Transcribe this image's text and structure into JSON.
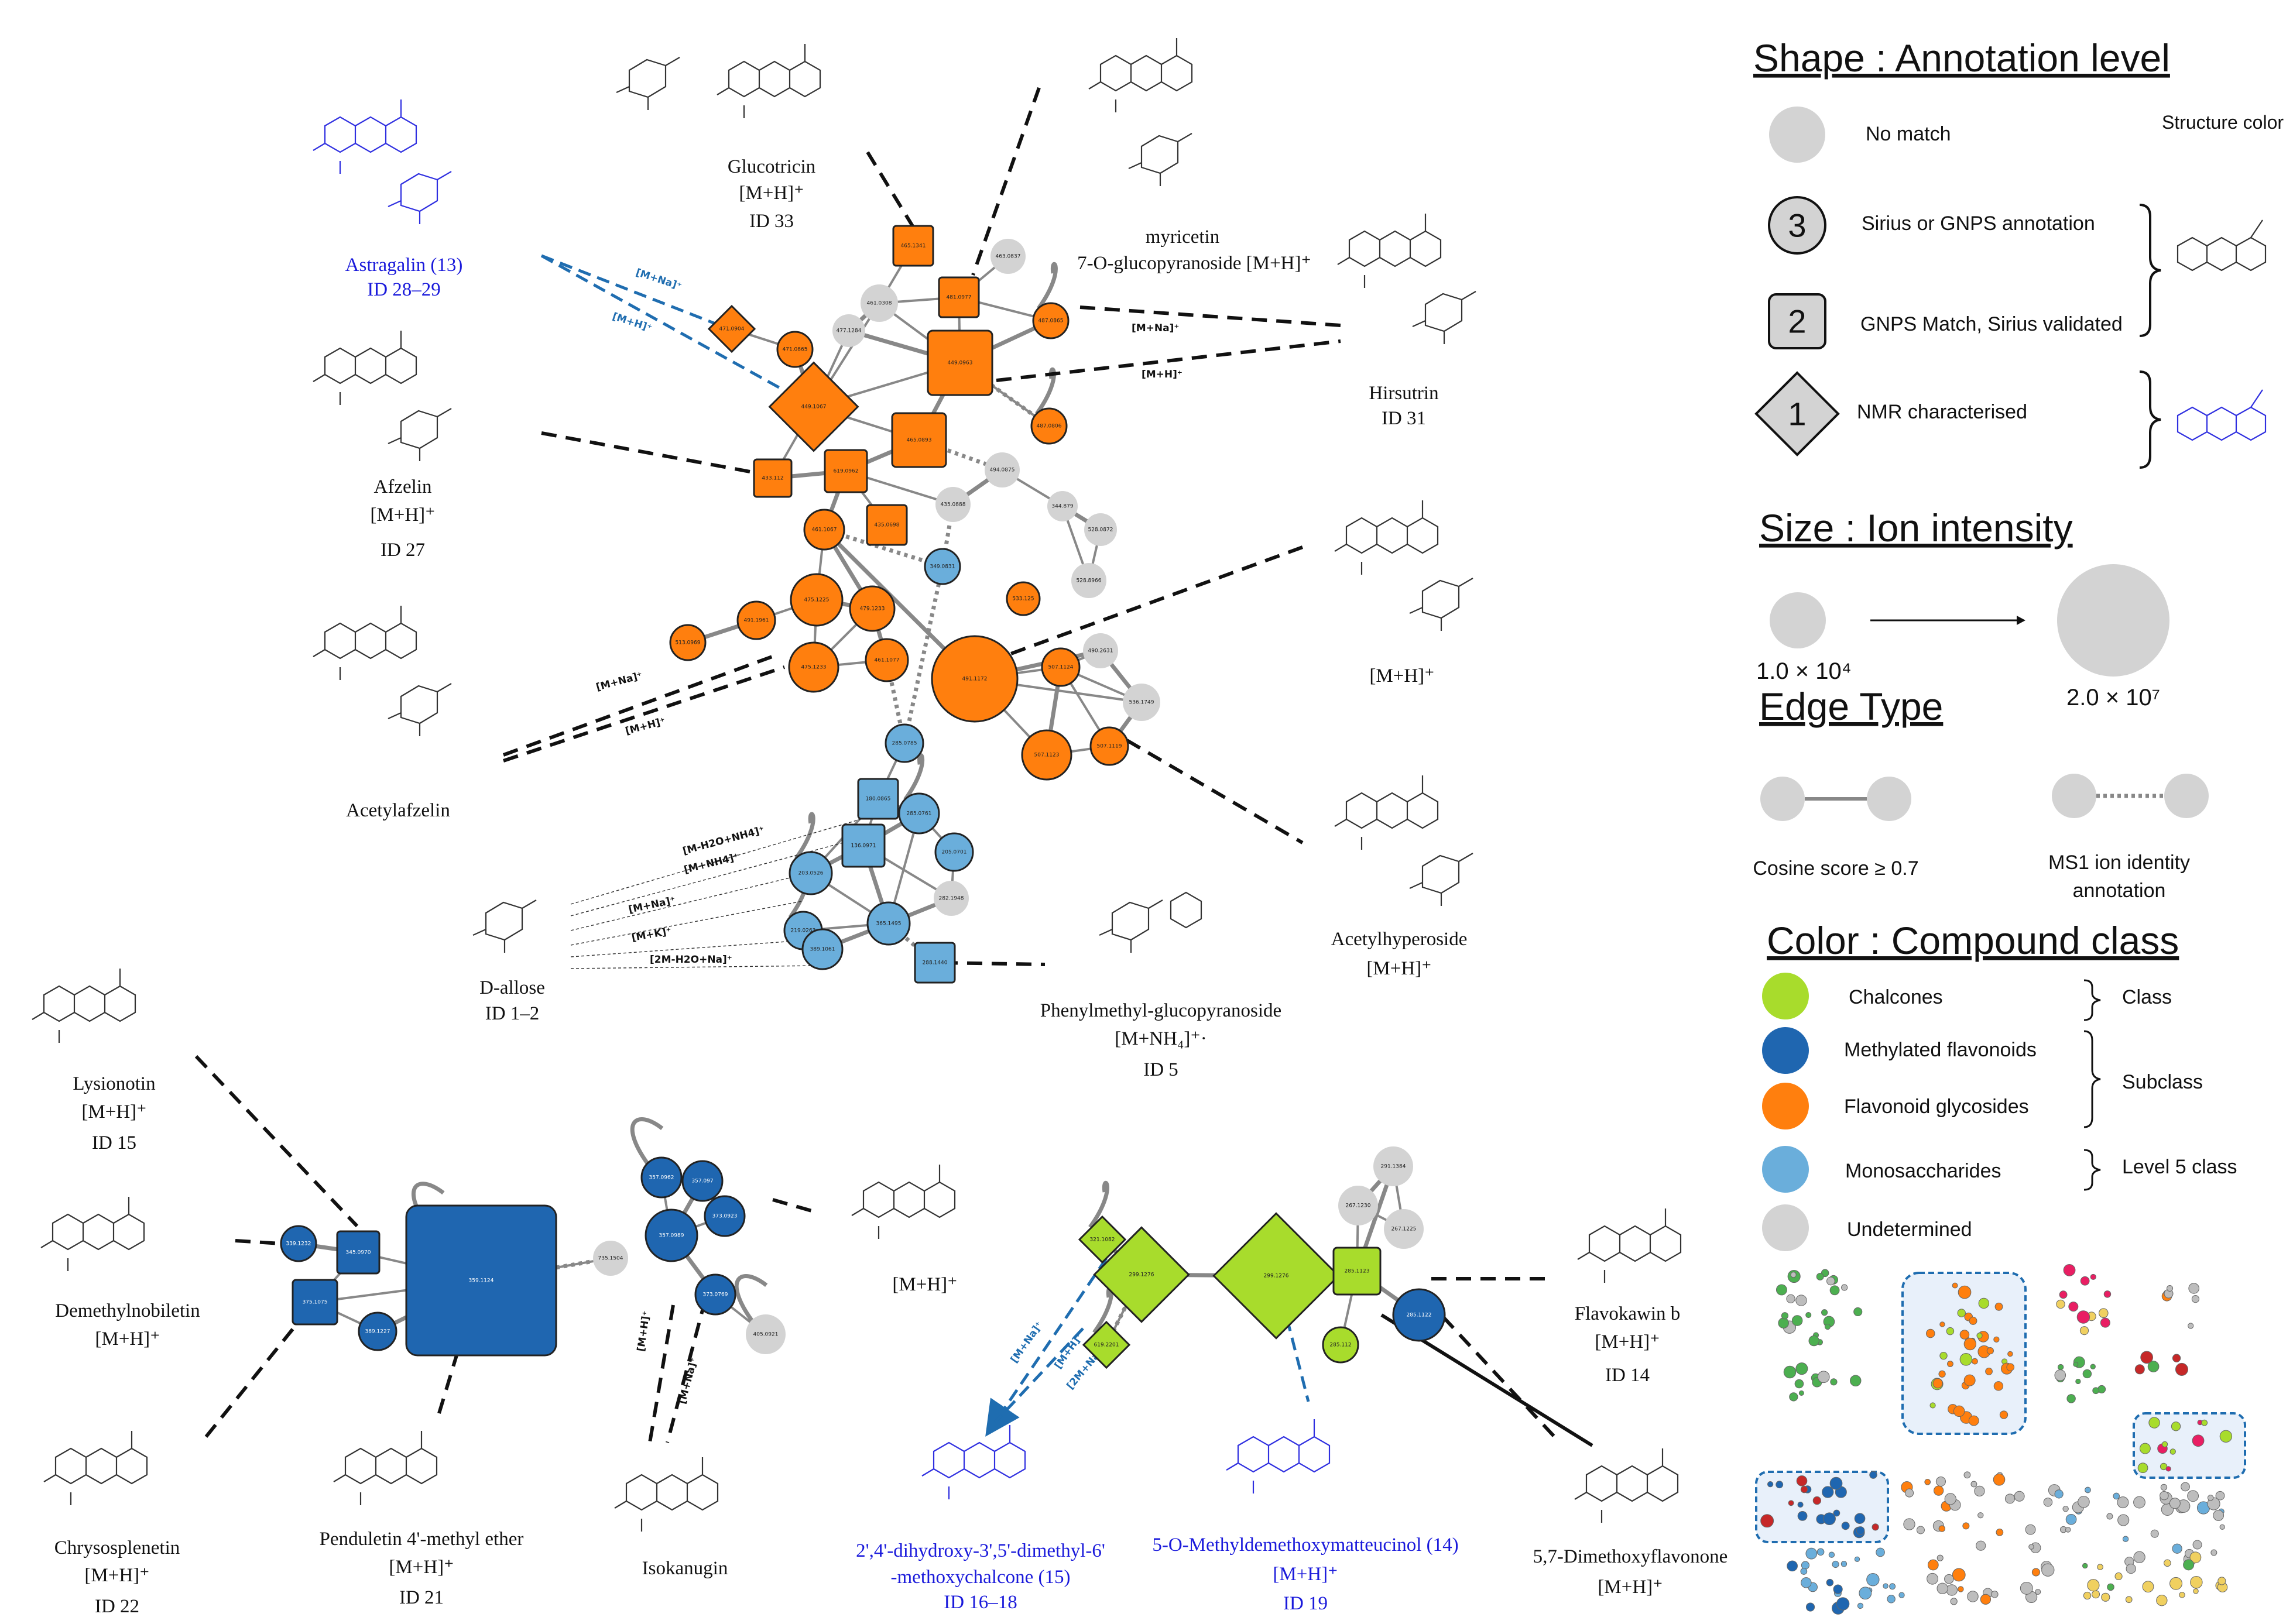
{
  "legend": {
    "shape_title": "Shape : Annotation level",
    "structure_color": "Structure color",
    "shape_items": [
      {
        "symbol": "",
        "label": "No match"
      },
      {
        "symbol": "3",
        "label": "Sirius or GNPS annotation"
      },
      {
        "symbol": "2",
        "label": "GNPS Match, Sirius validated"
      },
      {
        "symbol": "1",
        "label": "NMR characterised"
      }
    ],
    "size_title": "Size : Ion intensity",
    "size_min": "1.0 × 10⁴",
    "size_max": "2.0 × 10⁷",
    "edge_title": "Edge Type",
    "edge_items": [
      "Cosine score ≥ 0.7",
      "MS1 ion identity",
      "annotation"
    ],
    "color_title": "Color : Compound class",
    "color_items": [
      {
        "label": "Chalcones",
        "color": "#a8dc2c",
        "group": "Class"
      },
      {
        "label": "Methylated flavonoids",
        "color": "#1f66b0",
        "group": ""
      },
      {
        "label": "Flavonoid glycosides",
        "color": "#ff7f0e",
        "group": "Subclass"
      },
      {
        "label": "Monosaccharides",
        "color": "#6aaedb",
        "group": "Level 5 class"
      },
      {
        "label": "Undetermined",
        "color": "#d3d3d3",
        "group": ""
      }
    ]
  },
  "compounds": {
    "astragalin": {
      "name": "Astragalin (13)",
      "id": "ID 28–29"
    },
    "glucotricin": {
      "name": "Glucotricin",
      "adduct": "[M+H]⁺",
      "id": "ID 33"
    },
    "myricetin": {
      "name": "myricetin",
      "name2": "7-O-glucopyranoside [M+H]⁺"
    },
    "hirsutrin": {
      "name": "Hirsutrin",
      "id": "ID 31"
    },
    "afzelin": {
      "name": "Afzelin",
      "adduct": "[M+H]⁺",
      "id": "ID 27"
    },
    "acetylafzelin": {
      "name": "Acetylafzelin"
    },
    "unk_mh": {
      "adduct": "[M+H]⁺"
    },
    "acetylhyperoside": {
      "name": "Acetylhyperoside",
      "adduct": "[M+H]⁺"
    },
    "dallose": {
      "name": "D-allose",
      "id": "ID 1–2"
    },
    "phenylmethyl": {
      "name": "Phenylmethyl-glucopyranoside",
      "adduct": "[M+NH₄]⁺·",
      "id": "ID 5"
    },
    "lysionotin": {
      "name": "Lysionotin",
      "adduct": "[M+H]⁺",
      "id": "ID 15"
    },
    "demethylnobiletin": {
      "name": "Demethylnobiletin",
      "adduct": "[M+H]⁺"
    },
    "chrysosplenetin": {
      "name": "Chrysosplenetin",
      "adduct": "[M+H]⁺",
      "id": "ID 22"
    },
    "penduletin": {
      "name": "Penduletin 4'-methyl ether",
      "adduct": "[M+H]⁺",
      "id": "ID 21"
    },
    "isokanugin": {
      "name": "Isokanugin"
    },
    "mh_mid": {
      "adduct": "[M+H]⁺"
    },
    "chalcone15": {
      "name": "2',4'-dihydroxy-3',5'-dimethyl-6'",
      "name2": "-methoxychalcone (15)",
      "id": "ID 16–18"
    },
    "methyldemethoxy": {
      "name": "5-O-Methyldemethoxymatteucinol (14)",
      "adduct": "[M+H]⁺",
      "id": "ID 19"
    },
    "flavokawin": {
      "name": "Flavokawin b",
      "adduct": "[M+H]⁺",
      "id": "ID 14"
    },
    "dimethoxyflavanone": {
      "name": "5,7-Dimethoxyflavonone",
      "adduct": "[M+H]⁺"
    }
  },
  "adducts": {
    "mna": "[M+Na]⁺",
    "mh": "[M+H]⁺",
    "mh2o_nh4": "[M-H2O+NH4]⁺",
    "mnh4": "[M+NH4]⁺",
    "mk": "[M+K]⁺",
    "m2h2o_na": "[2M-H2O+Na]⁺",
    "m2na": "[2M+Na]⁺"
  },
  "nodes": [
    {
      "label": "465.1341",
      "cls": "glyco",
      "shape": "square"
    },
    {
      "label": "463.0837",
      "cls": "undet",
      "shape": "circle"
    },
    {
      "label": "461.0308",
      "cls": "undet",
      "shape": "circle"
    },
    {
      "label": "481.0977",
      "cls": "glyco",
      "shape": "square"
    },
    {
      "label": "487.0865",
      "cls": "glyco",
      "shape": "circle"
    },
    {
      "label": "471.0904",
      "cls": "glyco",
      "shape": "diamond"
    },
    {
      "label": "471.0865",
      "cls": "glyco",
      "shape": "circle"
    },
    {
      "label": "477.1284",
      "cls": "undet",
      "shape": "circle"
    },
    {
      "label": "449.0963",
      "cls": "glyco",
      "shape": "square"
    },
    {
      "label": "449.1067",
      "cls": "glyco",
      "shape": "diamond"
    },
    {
      "label": "465.0893",
      "cls": "glyco",
      "shape": "square"
    },
    {
      "label": "487.0806",
      "cls": "glyco",
      "shape": "circle"
    },
    {
      "label": "494.0875",
      "cls": "undet",
      "shape": "circle"
    },
    {
      "label": "433.112",
      "cls": "glyco",
      "shape": "square"
    },
    {
      "label": "619.0962",
      "cls": "glyco",
      "shape": "square"
    },
    {
      "label": "435.0888",
      "cls": "undet",
      "shape": "circle"
    },
    {
      "label": "344.879",
      "cls": "undet",
      "shape": "circle"
    },
    {
      "label": "528.0872",
      "cls": "undet",
      "shape": "circle"
    },
    {
      "label": "528.8966",
      "cls": "undet",
      "shape": "circle"
    },
    {
      "label": "461.1067",
      "cls": "glyco",
      "shape": "circle"
    },
    {
      "label": "435.0698",
      "cls": "glyco",
      "shape": "square"
    },
    {
      "label": "349.0831",
      "cls": "mono",
      "shape": "circle"
    },
    {
      "label": "475.1225",
      "cls": "glyco",
      "shape": "circle"
    },
    {
      "label": "479.1233",
      "cls": "glyco",
      "shape": "circle"
    },
    {
      "label": "533.125",
      "cls": "glyco",
      "shape": "circle"
    },
    {
      "label": "491.1961",
      "cls": "glyco",
      "shape": "circle"
    },
    {
      "label": "513.0969",
      "cls": "glyco",
      "shape": "circle"
    },
    {
      "label": "475.1233",
      "cls": "glyco",
      "shape": "circle"
    },
    {
      "label": "461.1077",
      "cls": "glyco",
      "shape": "circle"
    },
    {
      "label": "491.1172",
      "cls": "glyco",
      "shape": "circle"
    },
    {
      "label": "507.1124",
      "cls": "glyco",
      "shape": "circle"
    },
    {
      "label": "490.2631",
      "cls": "undet",
      "shape": "circle"
    },
    {
      "label": "536.1749",
      "cls": "undet",
      "shape": "circle"
    },
    {
      "label": "507.1123",
      "cls": "glyco",
      "shape": "circle"
    },
    {
      "label": "507.1119",
      "cls": "glyco",
      "shape": "circle"
    },
    {
      "label": "285.0785",
      "cls": "mono",
      "shape": "circle"
    },
    {
      "label": "180.0865",
      "cls": "mono",
      "shape": "square"
    },
    {
      "label": "285.0761",
      "cls": "mono",
      "shape": "circle"
    },
    {
      "label": "136.0971",
      "cls": "mono",
      "shape": "square"
    },
    {
      "label": "205.0701",
      "cls": "mono",
      "shape": "circle"
    },
    {
      "label": "203.0526",
      "cls": "mono",
      "shape": "circle"
    },
    {
      "label": "282.1948",
      "cls": "undet",
      "shape": "circle"
    },
    {
      "label": "219.0263",
      "cls": "mono",
      "shape": "circle"
    },
    {
      "label": "365.1495",
      "cls": "mono",
      "shape": "circle"
    },
    {
      "label": "389.1061",
      "cls": "mono",
      "shape": "circle"
    },
    {
      "label": "288.1440",
      "cls": "mono",
      "shape": "square"
    },
    {
      "label": "339.1232",
      "cls": "methyl",
      "shape": "circle"
    },
    {
      "label": "345.0970",
      "cls": "methyl",
      "shape": "square"
    },
    {
      "label": "375.1075",
      "cls": "methyl",
      "shape": "square"
    },
    {
      "label": "389.1227",
      "cls": "methyl",
      "shape": "circle"
    },
    {
      "label": "359.1124",
      "cls": "methyl",
      "shape": "square"
    },
    {
      "label": "735.1504",
      "cls": "undet",
      "shape": "circle"
    },
    {
      "label": "357.0962",
      "cls": "methyl",
      "shape": "circle"
    },
    {
      "label": "357.097",
      "cls": "methyl",
      "shape": "circle"
    },
    {
      "label": "373.0923",
      "cls": "methyl",
      "shape": "circle"
    },
    {
      "label": "357.0989",
      "cls": "methyl",
      "shape": "circle"
    },
    {
      "label": "373.0769",
      "cls": "methyl",
      "shape": "circle"
    },
    {
      "label": "405.0921",
      "cls": "undet",
      "shape": "circle"
    },
    {
      "label": "321.1082",
      "cls": "chalc",
      "shape": "diamond"
    },
    {
      "label": "299.1276",
      "cls": "chalc",
      "shape": "diamond"
    },
    {
      "label": "619.2201",
      "cls": "chalc",
      "shape": "diamond"
    },
    {
      "label": "299.1276",
      "cls": "chalc",
      "shape": "diamond"
    },
    {
      "label": "285.1123",
      "cls": "chalc",
      "shape": "square"
    },
    {
      "label": "285.112",
      "cls": "chalc",
      "shape": "circle"
    },
    {
      "label": "291.1384",
      "cls": "undet",
      "shape": "circle"
    },
    {
      "label": "267.1230",
      "cls": "undet",
      "shape": "circle"
    },
    {
      "label": "267.1225",
      "cls": "undet",
      "shape": "circle"
    },
    {
      "label": "285.1122",
      "cls": "methyl",
      "shape": "circle"
    }
  ]
}
